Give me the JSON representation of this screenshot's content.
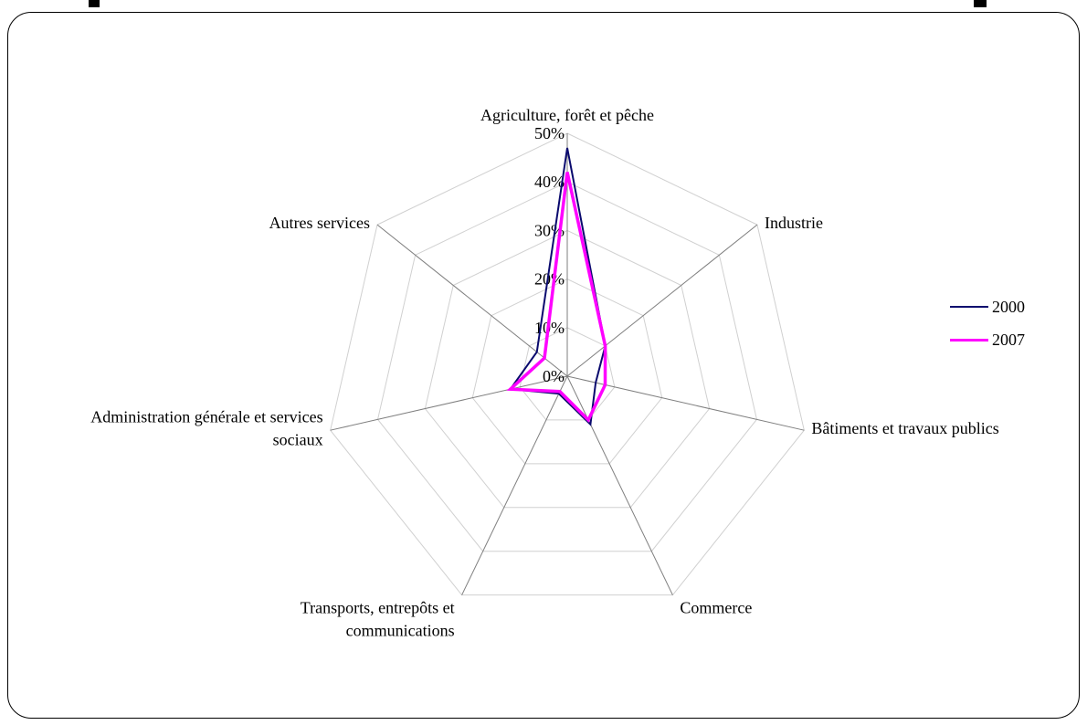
{
  "chart_data": {
    "type": "radar",
    "categories": [
      "Agriculture, forêt et pêche",
      "Industrie",
      "Bâtiments et travaux publics",
      "Commerce",
      "Transports, entrepôts et communications",
      "Administration générale et services sociaux",
      "Autres services"
    ],
    "label_lines": [
      [
        "Agriculture, forêt et pêche"
      ],
      [
        "Industrie"
      ],
      [
        "Bâtiments et travaux publics"
      ],
      [
        "Commerce"
      ],
      [
        "Transports, entrepôts et",
        "communications"
      ],
      [
        "Administration générale et services",
        "sociaux"
      ],
      [
        "Autres services"
      ]
    ],
    "series": [
      {
        "name": "2000",
        "values": [
          47,
          10,
          6,
          11,
          4,
          12,
          8
        ],
        "color": "#0a0a6e"
      },
      {
        "name": "2007",
        "values": [
          42,
          10,
          8,
          10,
          3.5,
          12,
          6
        ],
        "color": "#ff00ff"
      }
    ],
    "rlim": [
      0,
      50
    ],
    "ticks": [
      "0%",
      "10%",
      "20%",
      "30%",
      "40%",
      "50%"
    ],
    "grid": true,
    "legend": "right"
  }
}
